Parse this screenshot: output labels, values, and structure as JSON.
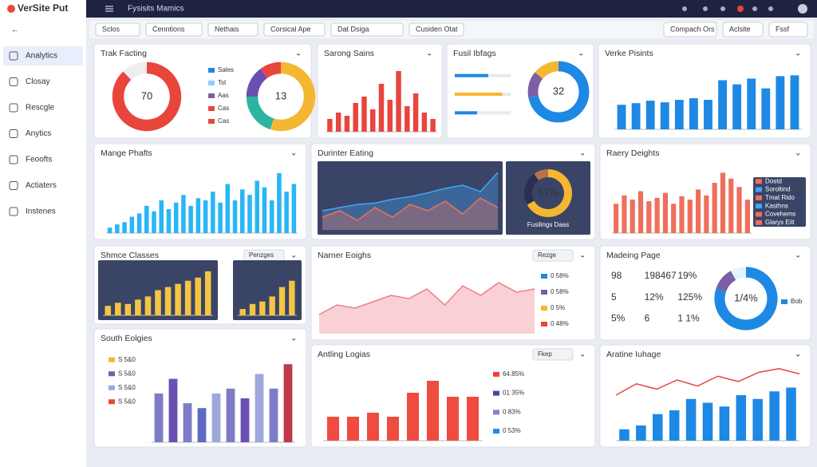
{
  "header": {
    "brand": "VerSite Put",
    "title": "Fysisits Mamics"
  },
  "filters": [
    "Sclos",
    "Cenntions",
    "Nethais",
    "Corsical Ape",
    "Dat Dsiga",
    "Cusiden Otat"
  ],
  "actions": [
    "Compach Ors",
    "Aclsite",
    "Fssf"
  ],
  "sidebar": [
    "Analytics",
    "Closay",
    "Rescgle",
    "Anytics",
    "Feoofts",
    "Actiaters",
    "Instenes"
  ],
  "cards": [
    {
      "title": "Trak Facting",
      "charts": [
        {
          "type": "donut",
          "values": [
            88,
            12
          ],
          "colors": [
            "#e8453c",
            "#eeeeee"
          ],
          "center": "70"
        },
        {
          "type": "legend",
          "items": [
            {
              "label": "Sales",
              "color": "#1e88e5"
            },
            {
              "label": "Tst",
              "color": "#90caf9"
            },
            {
              "label": "Aas",
              "color": "#7b5ea7"
            },
            {
              "label": "Cas",
              "color": "#e8453c"
            },
            {
              "label": "Cas",
              "color": "#e8453c"
            }
          ]
        },
        {
          "type": "donut",
          "values": [
            55,
            20,
            15,
            10
          ],
          "colors": [
            "#f5b731",
            "#2bb5a0",
            "#6a4fb3",
            "#e8453c"
          ],
          "center": "13"
        }
      ]
    },
    {
      "title": "Sarong Sains",
      "charts": [
        {
          "type": "bar",
          "values": [
            8,
            12,
            10,
            18,
            22,
            14,
            30,
            20,
            38,
            16,
            24,
            12,
            8
          ],
          "color": "#e8453c",
          "ylim": [
            0,
            40
          ]
        }
      ]
    },
    {
      "title": "Fusil Ibfags",
      "charts": [
        {
          "type": "hbar",
          "values": [
            60,
            85,
            40
          ],
          "colors": [
            "#1e88e5",
            "#f5b731",
            "#1e88e5"
          ],
          "xlim": [
            0,
            100
          ]
        },
        {
          "type": "donut",
          "values": [
            72,
            14,
            14
          ],
          "colors": [
            "#1e88e5",
            "#7b5ea7",
            "#f5b731"
          ],
          "center": "32"
        }
      ]
    },
    {
      "title": "Verke Pisints",
      "charts": [
        {
          "type": "bar",
          "values": [
            30,
            32,
            35,
            33,
            36,
            38,
            36,
            60,
            55,
            62,
            50,
            65,
            66
          ],
          "color": "#1e88e5",
          "ylim": [
            0,
            80
          ]
        }
      ]
    },
    {
      "title": "Mange Phafts",
      "charts": [
        {
          "type": "bar",
          "values": [
            5,
            8,
            10,
            15,
            18,
            25,
            20,
            30,
            22,
            28,
            35,
            25,
            32,
            30,
            38,
            28,
            45,
            30,
            40,
            35,
            48,
            42,
            30,
            55,
            38,
            45
          ],
          "color": "#29b6f6",
          "ylim": [
            0,
            60
          ]
        }
      ]
    },
    {
      "title": "Durinter Eating",
      "charts": [
        {
          "type": "area",
          "bg": "#3a4466",
          "series": [
            {
              "color": "#42a5f5",
              "values": [
                30,
                35,
                40,
                42,
                48,
                52,
                58,
                65,
                70,
                60,
                90
              ]
            },
            {
              "color": "#ef6f5c",
              "values": [
                20,
                30,
                15,
                35,
                20,
                40,
                30,
                45,
                25,
                50,
                35
              ]
            }
          ],
          "ylim": [
            0,
            100
          ]
        },
        {
          "type": "donut",
          "bg": "#3a4466",
          "values": [
            67,
            23,
            10
          ],
          "colors": [
            "#f5b731",
            "#2a3150",
            "#b5734a"
          ],
          "center": "67%",
          "caption": "Fusilings Daas"
        }
      ]
    },
    {
      "title": "Raery Deights",
      "charts": [
        {
          "type": "bar",
          "values": [
            35,
            45,
            40,
            50,
            38,
            42,
            48,
            35,
            44,
            40,
            52,
            45,
            60,
            72,
            65,
            55,
            40
          ],
          "color": "#ef6f5c",
          "ylim": [
            0,
            80
          ]
        },
        {
          "type": "legend",
          "bg": "#3a4466",
          "text": "#ffffff",
          "items": [
            {
              "label": "Dostd",
              "color": "#ef6f5c"
            },
            {
              "label": "Soroltind",
              "color": "#42a5f5"
            },
            {
              "label": "Tmat Rido",
              "color": "#ef6f5c"
            },
            {
              "label": "Kasthns",
              "color": "#42a5f5"
            },
            {
              "label": "Covehems",
              "color": "#ef6f5c"
            },
            {
              "label": "Glarys Eilt",
              "color": "#ef6f5c"
            }
          ]
        }
      ]
    },
    {
      "title": "Shmce Classes",
      "button": "Penzges",
      "charts": [
        {
          "type": "bar",
          "bg": "#3a4466",
          "values": [
            15,
            20,
            18,
            25,
            30,
            40,
            45,
            50,
            55,
            60,
            70
          ],
          "color": "#f5c542",
          "ylim": [
            0,
            80
          ]
        },
        {
          "type": "bar",
          "bg": "#3a4466",
          "values": [
            10,
            18,
            22,
            30,
            45,
            55
          ],
          "color": "#f5c542",
          "ylim": [
            0,
            80
          ]
        }
      ]
    },
    {
      "title": "Narner Eoighs",
      "button": "Rezge",
      "charts": [
        {
          "type": "area",
          "series": [
            {
              "color": "#ef7b86",
              "values": [
                30,
                45,
                40,
                50,
                60,
                55,
                70,
                45,
                75,
                60,
                80,
                65,
                70
              ]
            }
          ],
          "ylim": [
            0,
            100
          ]
        },
        {
          "type": "legend",
          "items": [
            {
              "label": "0 58%",
              "color": "#1e88e5"
            },
            {
              "label": "0 58%",
              "color": "#7b5ea7"
            },
            {
              "label": "0 5%",
              "color": "#f5b731"
            },
            {
              "label": "0 48%",
              "color": "#e8453c"
            }
          ]
        }
      ]
    },
    {
      "title": "Madeing Page",
      "charts": [
        {
          "type": "stats",
          "items": [
            "98",
            "198467",
            "19%",
            "5",
            "12%",
            "125%",
            "5%",
            "6",
            "1 1%"
          ]
        },
        {
          "type": "donut",
          "values": [
            80,
            12,
            8
          ],
          "colors": [
            "#1e88e5",
            "#7b5ea7",
            "#e3f2fd"
          ],
          "center": "1/4%"
        },
        {
          "type": "legend",
          "items": [
            {
              "label": "Bob",
              "color": "#1e88e5"
            }
          ]
        }
      ]
    },
    {
      "title": "South Eolgies",
      "charts": [
        {
          "type": "legend",
          "items": [
            {
              "label": "S 5&0",
              "color": "#f5b731"
            },
            {
              "label": "S 5&0",
              "color": "#7b5ea7"
            },
            {
              "label": "S 5&0",
              "color": "#9fa8da"
            },
            {
              "label": "S 5&0",
              "color": "#e8453c"
            }
          ]
        },
        {
          "type": "bar",
          "values": [
            50,
            65,
            40,
            35,
            50,
            55,
            45,
            70,
            55,
            80
          ],
          "colors": [
            "#7e7bc8",
            "#6a4fb3",
            "#7e7bc8",
            "#5c6bc0",
            "#9fa8da",
            "#7e7bc8",
            "#6a4fb3",
            "#9fa8da",
            "#7e7bc8",
            "#c0394b"
          ],
          "ylim": [
            0,
            90
          ]
        }
      ]
    },
    {
      "title": "Antling Logias",
      "button": "Fkep",
      "charts": [
        {
          "type": "bar",
          "values": [
            30,
            30,
            35,
            30,
            60,
            75,
            55,
            55
          ],
          "color": "#ef4b3f",
          "ylim": [
            0,
            90
          ]
        },
        {
          "type": "legend",
          "items": [
            {
              "label": "64.85%",
              "color": "#e8453c"
            },
            {
              "label": "01 35%",
              "color": "#3949ab"
            },
            {
              "label": "0 83%",
              "color": "#7986cb"
            },
            {
              "label": "0 53%",
              "color": "#1e88e5"
            }
          ]
        }
      ]
    },
    {
      "title": "Aratine Iuhage",
      "charts": [
        {
          "type": "bar",
          "values": [
            15,
            20,
            35,
            40,
            55,
            50,
            45,
            60,
            55,
            65,
            70
          ],
          "color": "#1e88e5",
          "ylim": [
            0,
            100
          ]
        },
        {
          "type": "line",
          "series": [
            {
              "color": "#e8453c",
              "values": [
                60,
                75,
                68,
                80,
                72,
                85,
                78,
                90,
                95,
                88
              ]
            }
          ],
          "ylim": [
            0,
            100
          ]
        }
      ]
    }
  ]
}
